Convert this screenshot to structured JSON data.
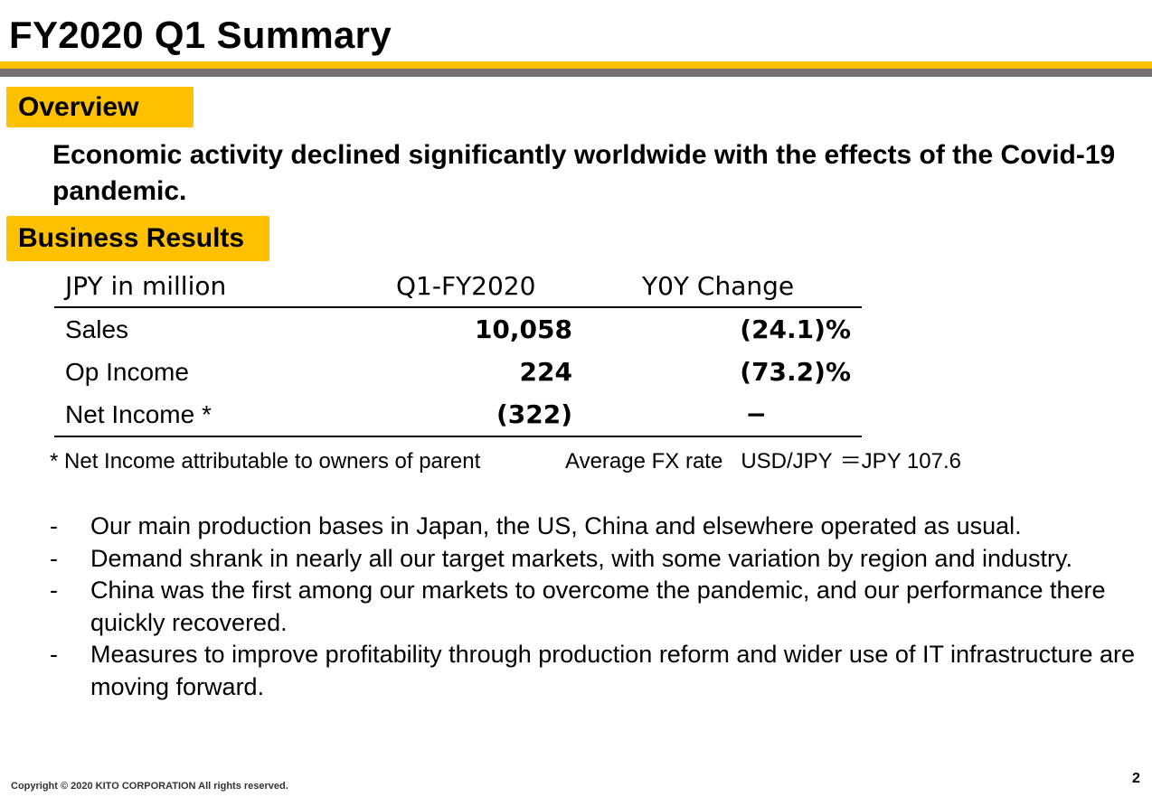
{
  "title": "FY2020 Q1 Summary",
  "colors": {
    "accent": "#FFC000",
    "rule_gray": "#767171"
  },
  "overview": {
    "label": "Overview",
    "text": "Economic activity declined significantly worldwide with the effects of the Covid-19 pandemic."
  },
  "results": {
    "label": "Business Results",
    "headers": [
      "JPY in million",
      "Q1-FY2020",
      "Y0Y Change"
    ],
    "rows": [
      {
        "label": "Sales",
        "value": "10,058",
        "change": "(24.1)%"
      },
      {
        "label": "Op Income",
        "value": "224",
        "change": "(73.2)%"
      },
      {
        "label": "Net Income *",
        "value": "(322)",
        "change": "−"
      }
    ],
    "footnote": "* Net Income attributable to owners of parent",
    "fx_label": "Average FX rate",
    "fx_pair": "USD/JPY",
    "fx_value": "＝JPY 107.6"
  },
  "bullets": [
    "Our main production bases in Japan, the US, China and elsewhere operated as usual.",
    "Demand shrank in nearly all our target markets, with some variation by region and industry.",
    "China was the first among our markets to overcome the pandemic, and our performance there quickly recovered.",
    "Measures to improve profitability through production reform and wider use of IT infrastructure are moving forward."
  ],
  "bullet_marker": "-",
  "footer": {
    "copyright": "Copyright © 2020  KITO CORPORATION  All rights reserved.",
    "page": "2"
  }
}
